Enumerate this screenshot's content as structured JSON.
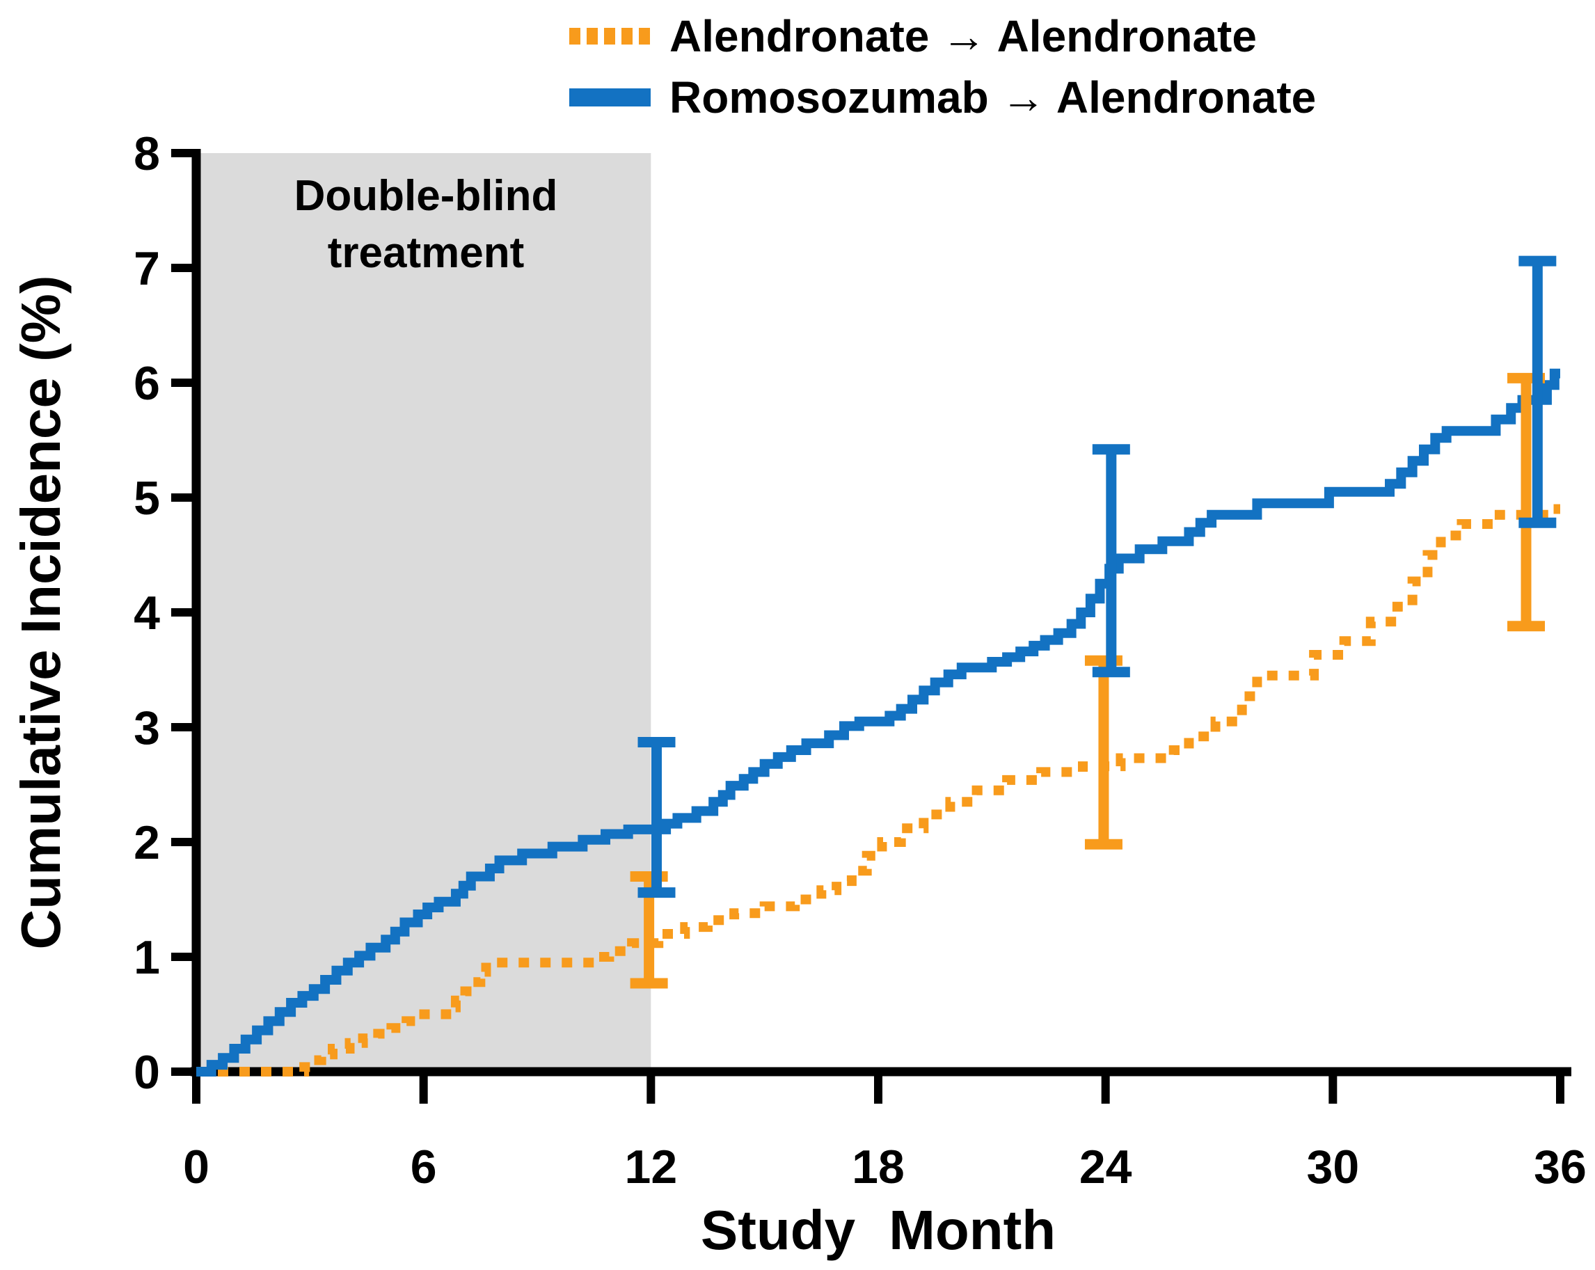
{
  "figure": {
    "background": "#ffffff",
    "legend": {
      "entries": [
        {
          "label": "Alendronate → Alendronate",
          "color": "#F89B1C",
          "style": "dotted"
        },
        {
          "label": "Romosozumab → Alendronate",
          "color": "#1372C2",
          "style": "solid"
        }
      ]
    },
    "annotation": {
      "line1": "Double-blind",
      "line2": "treatment"
    }
  },
  "chart_data": {
    "type": "line",
    "subtype": "step-cumulative-incidence",
    "title": "",
    "xlabel": "Study Month",
    "ylabel": "Cumulative Incidence (%)",
    "xlim": [
      0,
      36
    ],
    "ylim": [
      0,
      8
    ],
    "x_ticks": [
      0,
      6,
      12,
      18,
      24,
      30,
      36
    ],
    "y_ticks": [
      0,
      1,
      2,
      3,
      4,
      5,
      6,
      7,
      8
    ],
    "grid": false,
    "legend_position": "top-center",
    "shaded_region": {
      "label": "Double-blind treatment",
      "x0": 0,
      "x1": 12,
      "color": "#DBDBDB"
    },
    "colors": {
      "alendronate": "#F89B1C",
      "romosozumab": "#1372C2",
      "axis": "#000000",
      "region": "#DBDBDB"
    },
    "series": [
      {
        "name": "Alendronate → Alendronate",
        "color": "#F89B1C",
        "style": "dotted",
        "point_estimates": [
          {
            "month": 12,
            "value": 1.2
          },
          {
            "month": 24,
            "value": 2.7
          },
          {
            "month": 36,
            "value": 4.9
          }
        ],
        "step_points": [
          [
            0,
            0
          ],
          [
            2.85,
            0.04
          ],
          [
            3.05,
            0.1
          ],
          [
            3.3,
            0.15
          ],
          [
            3.6,
            0.2
          ],
          [
            4.05,
            0.25
          ],
          [
            4.4,
            0.29
          ],
          [
            4.8,
            0.33
          ],
          [
            5.15,
            0.38
          ],
          [
            5.55,
            0.44
          ],
          [
            5.85,
            0.5
          ],
          [
            6.6,
            0.56
          ],
          [
            6.85,
            0.62
          ],
          [
            7.1,
            0.7
          ],
          [
            7.3,
            0.78
          ],
          [
            7.5,
            0.87
          ],
          [
            7.65,
            0.95
          ],
          [
            10.5,
            1.0
          ],
          [
            10.9,
            1.05
          ],
          [
            11.5,
            1.12
          ],
          [
            12.2,
            1.2
          ],
          [
            12.9,
            1.26
          ],
          [
            13.5,
            1.32
          ],
          [
            14.2,
            1.38
          ],
          [
            15.0,
            1.44
          ],
          [
            15.8,
            1.5
          ],
          [
            16.5,
            1.58
          ],
          [
            16.9,
            1.66
          ],
          [
            17.3,
            1.75
          ],
          [
            17.7,
            1.88
          ],
          [
            18.1,
            2.0
          ],
          [
            18.6,
            2.12
          ],
          [
            19.2,
            2.24
          ],
          [
            19.9,
            2.35
          ],
          [
            20.6,
            2.45
          ],
          [
            21.4,
            2.54
          ],
          [
            22.3,
            2.61
          ],
          [
            23.4,
            2.66
          ],
          [
            24.4,
            2.73
          ],
          [
            25.8,
            2.8
          ],
          [
            26.2,
            2.92
          ],
          [
            26.9,
            3.05
          ],
          [
            27.6,
            3.27
          ],
          [
            28.0,
            3.45
          ],
          [
            29.5,
            3.63
          ],
          [
            30.3,
            3.75
          ],
          [
            31.0,
            3.92
          ],
          [
            31.7,
            4.05
          ],
          [
            32.1,
            4.27
          ],
          [
            32.5,
            4.5
          ],
          [
            32.85,
            4.67
          ],
          [
            33.4,
            4.77
          ],
          [
            34.4,
            4.85
          ],
          [
            35.7,
            4.9
          ],
          [
            36,
            4.9
          ]
        ]
      },
      {
        "name": "Romosozumab → Alendronate",
        "color": "#1372C2",
        "style": "solid",
        "point_estimates": [
          {
            "month": 12,
            "value": 2.15
          },
          {
            "month": 24,
            "value": 4.47
          },
          {
            "month": 36,
            "value": 5.85
          }
        ],
        "step_points": [
          [
            0,
            0
          ],
          [
            0.4,
            0.06
          ],
          [
            0.7,
            0.12
          ],
          [
            1.0,
            0.2
          ],
          [
            1.3,
            0.28
          ],
          [
            1.6,
            0.36
          ],
          [
            1.9,
            0.44
          ],
          [
            2.2,
            0.52
          ],
          [
            2.5,
            0.6
          ],
          [
            2.8,
            0.66
          ],
          [
            3.1,
            0.72
          ],
          [
            3.4,
            0.8
          ],
          [
            3.7,
            0.88
          ],
          [
            4.0,
            0.95
          ],
          [
            4.3,
            1.01
          ],
          [
            4.6,
            1.08
          ],
          [
            5.0,
            1.15
          ],
          [
            5.25,
            1.22
          ],
          [
            5.5,
            1.3
          ],
          [
            5.85,
            1.37
          ],
          [
            6.1,
            1.43
          ],
          [
            6.4,
            1.48
          ],
          [
            6.85,
            1.55
          ],
          [
            7.05,
            1.62
          ],
          [
            7.25,
            1.7
          ],
          [
            7.75,
            1.77
          ],
          [
            8.0,
            1.84
          ],
          [
            8.6,
            1.9
          ],
          [
            9.4,
            1.96
          ],
          [
            10.2,
            2.02
          ],
          [
            10.8,
            2.07
          ],
          [
            11.4,
            2.11
          ],
          [
            12.4,
            2.16
          ],
          [
            12.7,
            2.21
          ],
          [
            13.2,
            2.27
          ],
          [
            13.65,
            2.35
          ],
          [
            13.9,
            2.41
          ],
          [
            14.1,
            2.49
          ],
          [
            14.45,
            2.55
          ],
          [
            14.7,
            2.61
          ],
          [
            15.0,
            2.68
          ],
          [
            15.35,
            2.74
          ],
          [
            15.7,
            2.8
          ],
          [
            16.1,
            2.86
          ],
          [
            16.7,
            2.93
          ],
          [
            17.1,
            3.01
          ],
          [
            17.5,
            3.05
          ],
          [
            18.3,
            3.1
          ],
          [
            18.6,
            3.16
          ],
          [
            18.9,
            3.24
          ],
          [
            19.2,
            3.32
          ],
          [
            19.5,
            3.39
          ],
          [
            19.85,
            3.46
          ],
          [
            20.2,
            3.52
          ],
          [
            21.0,
            3.57
          ],
          [
            21.4,
            3.61
          ],
          [
            21.75,
            3.66
          ],
          [
            22.1,
            3.71
          ],
          [
            22.4,
            3.76
          ],
          [
            22.75,
            3.82
          ],
          [
            23.1,
            3.9
          ],
          [
            23.35,
            4.0
          ],
          [
            23.6,
            4.12
          ],
          [
            23.85,
            4.25
          ],
          [
            24.1,
            4.38
          ],
          [
            24.35,
            4.47
          ],
          [
            24.9,
            4.55
          ],
          [
            25.5,
            4.62
          ],
          [
            26.2,
            4.7
          ],
          [
            26.5,
            4.78
          ],
          [
            26.8,
            4.85
          ],
          [
            28.0,
            4.95
          ],
          [
            29.9,
            5.05
          ],
          [
            31.5,
            5.12
          ],
          [
            31.8,
            5.22
          ],
          [
            32.1,
            5.32
          ],
          [
            32.4,
            5.42
          ],
          [
            32.7,
            5.52
          ],
          [
            33.0,
            5.58
          ],
          [
            34.3,
            5.68
          ],
          [
            34.7,
            5.78
          ],
          [
            35.0,
            5.85
          ],
          [
            35.65,
            5.98
          ],
          [
            35.85,
            6.08
          ],
          [
            36,
            6.08
          ]
        ]
      }
    ],
    "error_bars": [
      {
        "series": "Alendronate → Alendronate",
        "month": 11.95,
        "low": 0.77,
        "high": 1.7
      },
      {
        "series": "Alendronate → Alendronate",
        "month": 23.95,
        "low": 1.98,
        "high": 3.58
      },
      {
        "series": "Alendronate → Alendronate",
        "month": 35.1,
        "low": 3.88,
        "high": 6.04
      },
      {
        "series": "Romosozumab → Alendronate",
        "month": 12.15,
        "low": 1.56,
        "high": 2.87
      },
      {
        "series": "Romosozumab → Alendronate",
        "month": 24.15,
        "low": 3.48,
        "high": 5.42
      },
      {
        "series": "Romosozumab → Alendronate",
        "month": 35.4,
        "low": 4.78,
        "high": 7.06
      }
    ]
  }
}
